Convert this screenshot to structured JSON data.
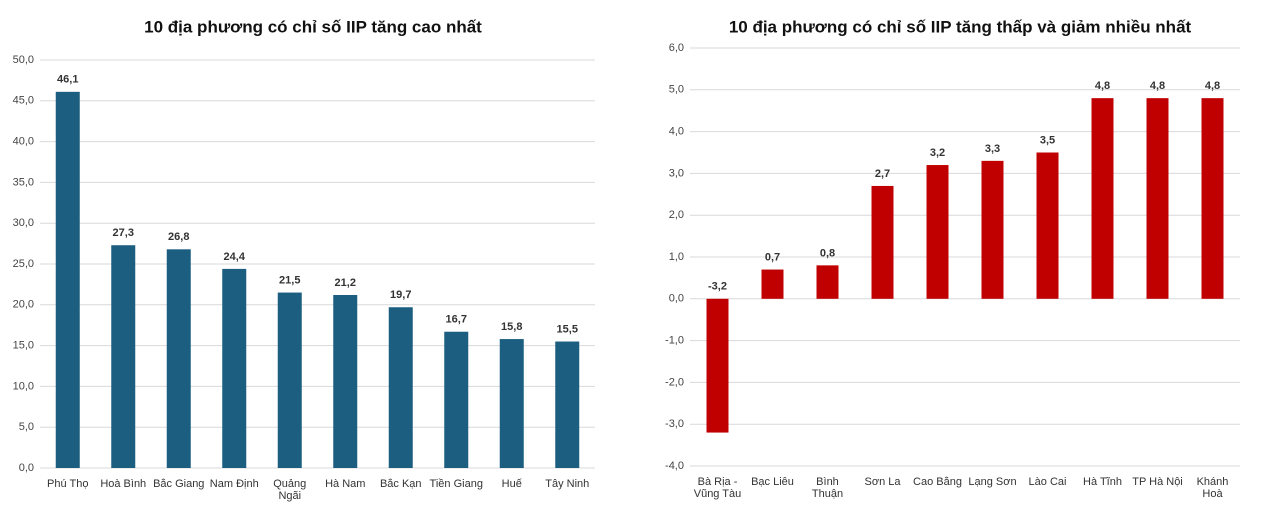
{
  "chart_data": [
    {
      "type": "bar",
      "title": "10 địa phương có chỉ số IIP tăng cao nhất",
      "categories": [
        "Phú Thọ",
        "Hoà Bình",
        "Bắc Giang",
        "Nam Định",
        "Quảng Ngãi",
        "Hà Nam",
        "Bắc Kạn",
        "Tiền Giang",
        "Huế",
        "Tây Ninh"
      ],
      "values": [
        46.1,
        27.3,
        26.8,
        24.4,
        21.5,
        21.2,
        19.7,
        16.7,
        15.8,
        15.5
      ],
      "value_labels": [
        "46,1",
        "27,3",
        "26,8",
        "24,4",
        "21,5",
        "21,2",
        "19,7",
        "16,7",
        "15,8",
        "15,5"
      ],
      "color": "#1b5e80",
      "ylim": [
        0,
        50
      ],
      "yticks": [
        {
          "value": 0,
          "label": "0,0"
        },
        {
          "value": 5,
          "label": "5,0"
        },
        {
          "value": 10,
          "label": "10,0"
        },
        {
          "value": 15,
          "label": "15,0"
        },
        {
          "value": 20,
          "label": "20,0"
        },
        {
          "value": 25,
          "label": "25,0"
        },
        {
          "value": 30,
          "label": "30,0"
        },
        {
          "value": 35,
          "label": "35,0"
        },
        {
          "value": 40,
          "label": "40,0"
        },
        {
          "value": 45,
          "label": "45,0"
        },
        {
          "value": 50,
          "label": "50,0"
        }
      ],
      "grid": true
    },
    {
      "type": "bar",
      "title": "10 địa phương có chỉ số IIP tăng thấp và giảm nhiều nhất",
      "categories": [
        "Bà Rịa - Vũng Tàu",
        "Bạc Liêu",
        "Bình Thuận",
        "Sơn La",
        "Cao Bằng",
        "Lạng Sơn",
        "Lào Cai",
        "Hà Tĩnh",
        "TP Hà Nội",
        "Khánh Hoà"
      ],
      "values": [
        -3.2,
        0.7,
        0.8,
        2.7,
        3.2,
        3.3,
        3.5,
        4.8,
        4.8,
        4.8
      ],
      "value_labels": [
        "-3,2",
        "0,7",
        "0,8",
        "2,7",
        "3,2",
        "3,3",
        "3,5",
        "4,8",
        "4,8",
        "4,8"
      ],
      "color": "#c00000",
      "ylim": [
        -4,
        6
      ],
      "yticks": [
        {
          "value": -4,
          "label": "-4,0"
        },
        {
          "value": -3,
          "label": "-3,0"
        },
        {
          "value": -2,
          "label": "-2,0"
        },
        {
          "value": -1,
          "label": "-1,0"
        },
        {
          "value": 0,
          "label": "0,0"
        },
        {
          "value": 1,
          "label": "1,0"
        },
        {
          "value": 2,
          "label": "2,0"
        },
        {
          "value": 3,
          "label": "3,0"
        },
        {
          "value": 4,
          "label": "4,0"
        },
        {
          "value": 5,
          "label": "5,0"
        },
        {
          "value": 6,
          "label": "6,0"
        }
      ],
      "grid": true
    }
  ]
}
